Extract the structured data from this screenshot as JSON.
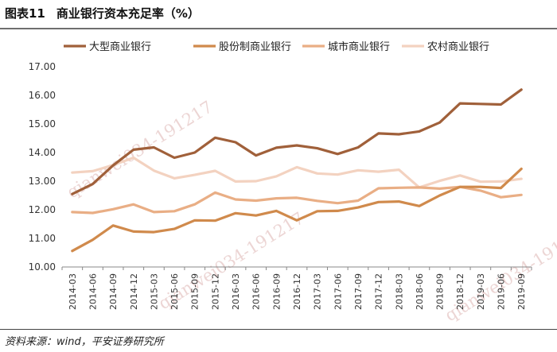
{
  "title": {
    "prefix": "图表11",
    "text": "商业银行资本充足率（%）"
  },
  "source": "资料来源：wind，平安证券研究所",
  "watermarks": [
    "qianwei034-191217",
    "qianwei034-191217",
    "qianwei034-191217"
  ],
  "chart_data": {
    "type": "line",
    "categories": [
      "2014-03",
      "2014-06",
      "2014-09",
      "2014-12",
      "2015-03",
      "2015-06",
      "2015-09",
      "2015-12",
      "2016-03",
      "2016-06",
      "2016-09",
      "2016-12",
      "2017-03",
      "2017-06",
      "2017-09",
      "2017-12",
      "2018-03",
      "2018-06",
      "2018-09",
      "2018-12",
      "2019-03",
      "2019-06",
      "2019-09"
    ],
    "ylim": [
      10.0,
      17.0
    ],
    "yticks": [
      "10.00",
      "11.00",
      "12.00",
      "13.00",
      "14.00",
      "15.00",
      "16.00",
      "17.00"
    ],
    "legend_position": "top",
    "grid": false,
    "series": [
      {
        "name": "大型商业银行",
        "color": "#a0603a",
        "values": [
          12.55,
          12.9,
          13.55,
          14.1,
          14.18,
          13.82,
          14.0,
          14.52,
          14.36,
          13.9,
          14.17,
          14.25,
          14.15,
          13.95,
          14.18,
          14.67,
          14.64,
          14.74,
          15.05,
          15.72,
          15.7,
          15.68,
          16.2
        ]
      },
      {
        "name": "股份制商业银行",
        "color": "#d08a4c",
        "values": [
          10.56,
          10.95,
          11.45,
          11.24,
          11.22,
          11.33,
          11.63,
          11.62,
          11.88,
          11.8,
          11.96,
          11.63,
          11.95,
          11.96,
          12.08,
          12.27,
          12.29,
          12.13,
          12.5,
          12.8,
          12.8,
          12.76,
          13.43
        ]
      },
      {
        "name": "城市商业银行",
        "color": "#e9ae85",
        "values": [
          11.92,
          11.89,
          12.02,
          12.19,
          11.92,
          11.95,
          12.19,
          12.6,
          12.36,
          12.32,
          12.4,
          12.42,
          12.31,
          12.23,
          12.32,
          12.75,
          12.77,
          12.78,
          12.74,
          12.8,
          12.67,
          12.44,
          12.52
        ]
      },
      {
        "name": "农村商业银行",
        "color": "#f3d2c0",
        "values": [
          13.3,
          13.35,
          13.56,
          13.82,
          13.37,
          13.1,
          13.22,
          13.36,
          12.99,
          13.0,
          13.17,
          13.49,
          13.27,
          13.23,
          13.38,
          13.33,
          13.4,
          12.78,
          13.01,
          13.2,
          12.98,
          12.99,
          13.08
        ]
      }
    ]
  }
}
